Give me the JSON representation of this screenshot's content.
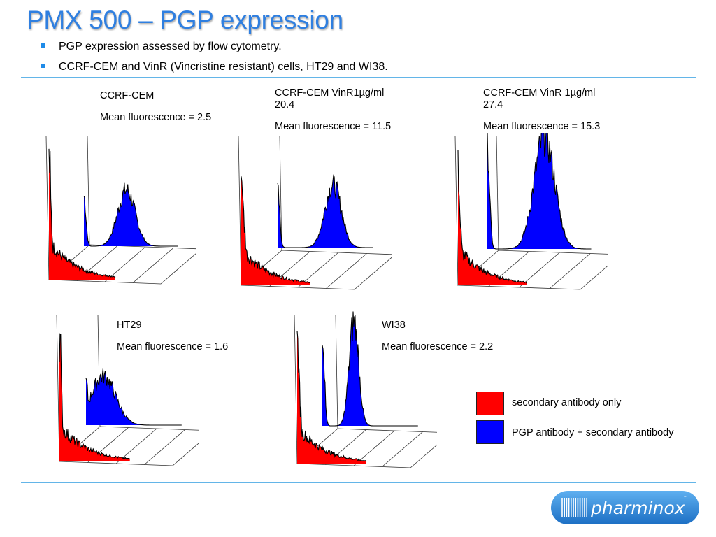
{
  "slide": {
    "title": "PMX 500 – PGP expression",
    "bullets": [
      "PGP expression assessed by flow cytometry.",
      "CCRF-CEM and VinR (Vincristine resistant) cells, HT29 and WI38."
    ]
  },
  "panels": [
    {
      "label": "CCRF-CEM",
      "mean_text": "Mean fluorescence = 2.5"
    },
    {
      "label": "CCRF-CEM VinR1µg/ml",
      "label_line2": "20.4",
      "mean_text": "Mean fluorescence = 11.5"
    },
    {
      "label": "CCRF-CEM VinR 1µg/ml",
      "label_line2": "27.4",
      "mean_text": "Mean fluorescence = 15.3"
    },
    {
      "label": "HT29",
      "mean_text": "Mean fluorescence = 1.6"
    },
    {
      "label": "WI38",
      "mean_text": "Mean fluorescence = 2.2"
    }
  ],
  "legend": [
    {
      "label": "secondary antibody only",
      "color": "#ff0000"
    },
    {
      "label": "PGP antibody + secondary antibody",
      "color": "#0000ff"
    }
  ],
  "colors": {
    "title": "#2f7fe0",
    "rule": "#63b5e8",
    "bullet": "#1f8be8",
    "logo_bg": "#2e8ad8"
  },
  "logo": {
    "text": "pharminox",
    "mark": "™"
  }
}
